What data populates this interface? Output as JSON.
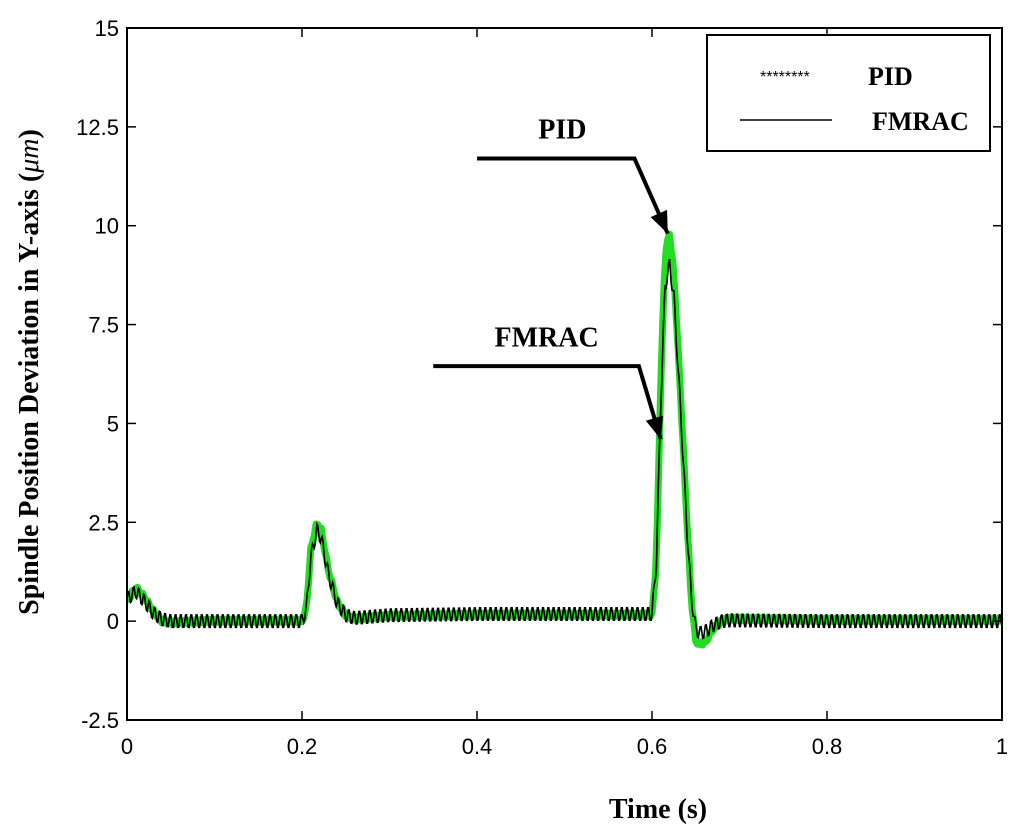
{
  "chart_data": {
    "type": "line",
    "title": "",
    "xlabel": "Time (s)",
    "ylabel_main": "Spindle Position Deviation in Y-axis (",
    "ylabel_unit": "μm",
    "ylabel_close": ")",
    "xlim": [
      0,
      1
    ],
    "ylim": [
      -2.5,
      15
    ],
    "xticks": [
      0,
      0.2,
      0.4,
      0.6,
      0.8,
      1
    ],
    "xtick_labels": [
      "0",
      "0.2",
      "0.4",
      "0.6",
      "0.8",
      "1"
    ],
    "yticks": [
      -2.5,
      0,
      2.5,
      5,
      7.5,
      10,
      12.5,
      15
    ],
    "ytick_labels": [
      "-2.5",
      "0",
      "2.5",
      "5",
      "7.5",
      "10",
      "12.5",
      "15"
    ],
    "grid": false,
    "legend": {
      "placement": "top-right",
      "entries": [
        {
          "marker": "********",
          "label": "PID"
        },
        {
          "marker": "line",
          "label": "FMRAC"
        }
      ]
    },
    "series": [
      {
        "name": "PID",
        "color": "#22dd22",
        "points": [
          [
            0,
            0.5
          ],
          [
            0.01,
            0.85
          ],
          [
            0.02,
            0.6
          ],
          [
            0.03,
            0.25
          ],
          [
            0.04,
            0.0
          ],
          [
            0.05,
            -0.05
          ],
          [
            0.1,
            0.0
          ],
          [
            0.15,
            0.0
          ],
          [
            0.2,
            0.0
          ],
          [
            0.205,
            0.3
          ],
          [
            0.21,
            1.8
          ],
          [
            0.217,
            2.5
          ],
          [
            0.222,
            2.3
          ],
          [
            0.23,
            1.3
          ],
          [
            0.24,
            0.5
          ],
          [
            0.25,
            0.15
          ],
          [
            0.26,
            0.05
          ],
          [
            0.3,
            0.12
          ],
          [
            0.4,
            0.15
          ],
          [
            0.5,
            0.15
          ],
          [
            0.6,
            0.15
          ],
          [
            0.605,
            1.5
          ],
          [
            0.61,
            6.0
          ],
          [
            0.615,
            9.3
          ],
          [
            0.62,
            9.8
          ],
          [
            0.625,
            8.8
          ],
          [
            0.632,
            6.0
          ],
          [
            0.64,
            2.5
          ],
          [
            0.645,
            0.5
          ],
          [
            0.65,
            -0.5
          ],
          [
            0.655,
            -0.6
          ],
          [
            0.662,
            -0.5
          ],
          [
            0.67,
            -0.2
          ],
          [
            0.68,
            0.0
          ],
          [
            0.69,
            0.05
          ],
          [
            0.8,
            0.02
          ],
          [
            0.9,
            0.02
          ],
          [
            1.0,
            0.02
          ]
        ]
      },
      {
        "name": "FMRAC",
        "color": "#000000",
        "points": [
          [
            0,
            0.55
          ],
          [
            0.01,
            0.75
          ],
          [
            0.02,
            0.5
          ],
          [
            0.03,
            0.2
          ],
          [
            0.04,
            0.05
          ],
          [
            0.05,
            0.0
          ],
          [
            0.1,
            0.0
          ],
          [
            0.15,
            0.0
          ],
          [
            0.2,
            0.0
          ],
          [
            0.205,
            0.3
          ],
          [
            0.21,
            1.6
          ],
          [
            0.217,
            2.3
          ],
          [
            0.222,
            2.1
          ],
          [
            0.23,
            1.2
          ],
          [
            0.24,
            0.45
          ],
          [
            0.25,
            0.15
          ],
          [
            0.26,
            0.08
          ],
          [
            0.3,
            0.15
          ],
          [
            0.4,
            0.18
          ],
          [
            0.5,
            0.18
          ],
          [
            0.6,
            0.18
          ],
          [
            0.605,
            1.5
          ],
          [
            0.61,
            5.5
          ],
          [
            0.615,
            8.5
          ],
          [
            0.62,
            9.0
          ],
          [
            0.625,
            8.2
          ],
          [
            0.632,
            5.6
          ],
          [
            0.64,
            2.3
          ],
          [
            0.645,
            0.6
          ],
          [
            0.65,
            -0.2
          ],
          [
            0.655,
            -0.3
          ],
          [
            0.662,
            -0.25
          ],
          [
            0.67,
            -0.1
          ],
          [
            0.68,
            0.0
          ],
          [
            0.69,
            0.02
          ],
          [
            0.8,
            0.0
          ],
          [
            0.9,
            0.0
          ],
          [
            1.0,
            0.0
          ]
        ],
        "ripple_amplitude": 0.18,
        "ripple_period": 0.006
      }
    ],
    "annotations": [
      {
        "text": "PID",
        "target": [
          0.618,
          9.8
        ],
        "elbow": [
          0.58,
          11.7
        ],
        "start_x": 0.4,
        "label_x": 0.47,
        "label_y": 12.2
      },
      {
        "text": "FMRAC",
        "target": [
          0.61,
          4.6
        ],
        "elbow": [
          0.585,
          6.45
        ],
        "start_x": 0.35,
        "label_x": 0.42,
        "label_y": 6.95
      }
    ]
  }
}
